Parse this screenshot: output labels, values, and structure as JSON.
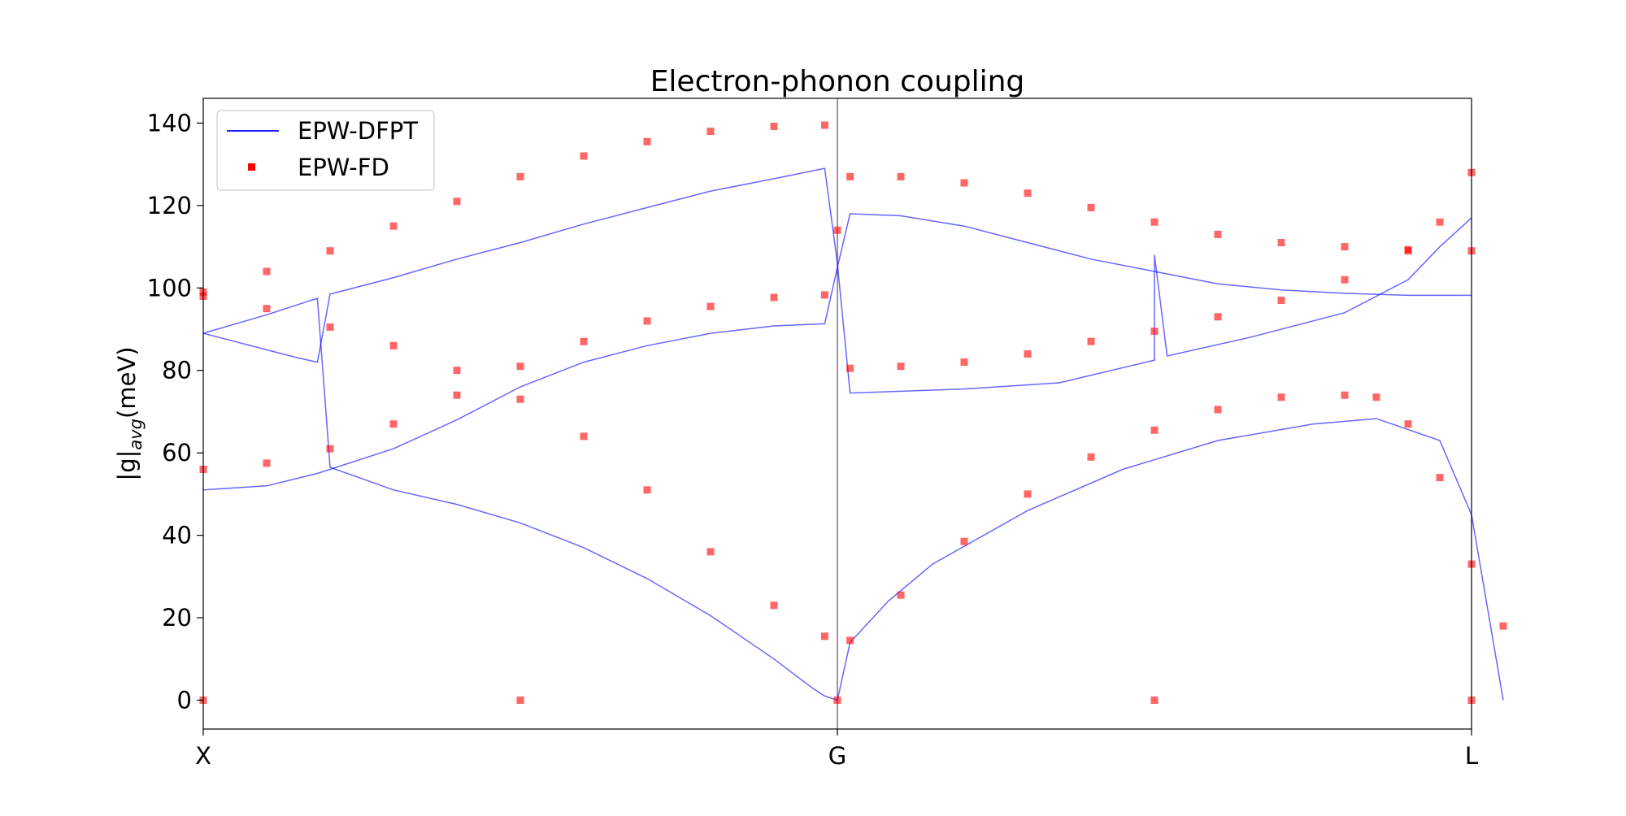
{
  "chart_data": {
    "type": "line",
    "title": "Electron-phonon coupling",
    "ylabel_main": "|g|",
    "ylabel_sub": "avg",
    "ylabel_unit": "(meV)",
    "xlabel": "",
    "x_ticks": [
      {
        "label": "X",
        "pos": 0
      },
      {
        "label": "G",
        "pos": 1
      },
      {
        "label": "L",
        "pos": 2
      }
    ],
    "x_range": [
      0,
      2
    ],
    "ylim": [
      -7,
      146
    ],
    "y_ticks": [
      0,
      20,
      40,
      60,
      80,
      100,
      120,
      140
    ],
    "grid": false,
    "legend_position": "top-left",
    "legend": [
      {
        "label": "EPW-DFPT",
        "marker": "line",
        "color": "#0000ff"
      },
      {
        "label": "EPW-FD",
        "marker": "square",
        "color": "#ff0000"
      }
    ],
    "colors": {
      "dfpt": "#0000ff",
      "fd": "#ff0000"
    },
    "series": [
      {
        "legend": "EPW-DFPT",
        "kind": "line",
        "points": [
          [
            0,
            51
          ],
          [
            0.1,
            52
          ],
          [
            0.18,
            55
          ],
          [
            0.3,
            61
          ],
          [
            0.4,
            68
          ],
          [
            0.5,
            76
          ],
          [
            0.6,
            82
          ],
          [
            0.7,
            86
          ],
          [
            0.8,
            89
          ],
          [
            0.9,
            90.8
          ],
          [
            0.98,
            91.3
          ],
          [
            1.0,
            105
          ],
          [
            1.02,
            118
          ],
          [
            1.1,
            117.5
          ],
          [
            1.2,
            115
          ],
          [
            1.3,
            111
          ],
          [
            1.4,
            107
          ],
          [
            1.5,
            104
          ],
          [
            1.6,
            101
          ],
          [
            1.7,
            99.5
          ],
          [
            1.8,
            98.7
          ],
          [
            1.9,
            98.2
          ],
          [
            2.0,
            98.2
          ]
        ]
      },
      {
        "legend": "EPW-DFPT",
        "kind": "line",
        "points": [
          [
            0,
            89
          ],
          [
            0.1,
            93.5
          ],
          [
            0.18,
            97.5
          ],
          [
            0.2,
            56.5
          ],
          [
            0.3,
            51
          ],
          [
            0.4,
            47.5
          ],
          [
            0.5,
            43
          ],
          [
            0.6,
            37
          ],
          [
            0.7,
            29.5
          ],
          [
            0.8,
            20.5
          ],
          [
            0.9,
            10
          ],
          [
            0.96,
            3
          ],
          [
            0.98,
            1
          ],
          [
            1.0,
            0
          ],
          [
            1.02,
            14
          ],
          [
            1.08,
            24
          ],
          [
            1.15,
            33
          ],
          [
            1.3,
            46
          ],
          [
            1.45,
            56
          ],
          [
            1.6,
            63
          ],
          [
            1.75,
            67
          ],
          [
            1.85,
            68.3
          ],
          [
            1.95,
            63
          ],
          [
            2.0,
            45
          ],
          [
            2.05,
            0
          ]
        ]
      },
      {
        "legend": "EPW-DFPT",
        "kind": "line",
        "points": [
          [
            0,
            89
          ],
          [
            0.1,
            85
          ],
          [
            0.15,
            83
          ],
          [
            0.18,
            82
          ],
          [
            0.2,
            98.5
          ],
          [
            0.3,
            102.5
          ],
          [
            0.4,
            107
          ],
          [
            0.5,
            111
          ],
          [
            0.6,
            115.5
          ],
          [
            0.7,
            119.5
          ],
          [
            0.8,
            123.5
          ],
          [
            0.9,
            126.5
          ],
          [
            0.98,
            129
          ],
          [
            1.0,
            106
          ],
          [
            1.02,
            74.5
          ],
          [
            1.2,
            75.5
          ],
          [
            1.35,
            77
          ],
          [
            1.5,
            82.5
          ],
          [
            1.5,
            108
          ],
          [
            1.52,
            83.5
          ],
          [
            1.65,
            88
          ],
          [
            1.8,
            94
          ],
          [
            1.9,
            102
          ],
          [
            1.95,
            110
          ],
          [
            2.0,
            117
          ]
        ]
      },
      {
        "legend": "EPW-FD",
        "kind": "scatter",
        "points": [
          [
            0,
            56
          ],
          [
            0.1,
            57.5
          ],
          [
            0.2,
            61
          ],
          [
            0.3,
            67
          ],
          [
            0.4,
            74
          ],
          [
            0.5,
            81
          ],
          [
            0.6,
            87
          ],
          [
            0.7,
            92
          ],
          [
            0.8,
            95.5
          ],
          [
            0.9,
            97.7
          ],
          [
            0.98,
            98.3
          ],
          [
            1.0,
            114
          ],
          [
            1.02,
            127
          ],
          [
            1.1,
            127
          ],
          [
            1.2,
            125.5
          ],
          [
            1.3,
            123
          ],
          [
            1.4,
            119.5
          ],
          [
            1.5,
            116
          ],
          [
            1.6,
            113
          ],
          [
            1.7,
            111
          ],
          [
            1.8,
            110
          ],
          [
            1.9,
            109.3
          ],
          [
            2.0,
            109
          ]
        ]
      },
      {
        "legend": "EPW-FD",
        "kind": "scatter",
        "points": [
          [
            0,
            98
          ],
          [
            0.1,
            95
          ],
          [
            0.2,
            90.5
          ],
          [
            0.3,
            86
          ],
          [
            0.4,
            80
          ],
          [
            0.5,
            73
          ],
          [
            0.6,
            64
          ],
          [
            0.7,
            51
          ],
          [
            0.8,
            36
          ],
          [
            0.9,
            23
          ],
          [
            0.98,
            15.5
          ],
          [
            1.02,
            14.5
          ],
          [
            1.1,
            25.5
          ],
          [
            1.2,
            38.5
          ],
          [
            1.3,
            50
          ],
          [
            1.4,
            59
          ],
          [
            1.5,
            65.5
          ],
          [
            1.6,
            70.5
          ],
          [
            1.7,
            73.5
          ],
          [
            1.8,
            74
          ],
          [
            1.85,
            73.5
          ],
          [
            1.9,
            67
          ],
          [
            1.95,
            54
          ],
          [
            2.0,
            33
          ],
          [
            2.05,
            18
          ]
        ]
      },
      {
        "legend": "EPW-FD",
        "kind": "scatter",
        "points": [
          [
            0,
            99
          ],
          [
            0.1,
            104
          ],
          [
            0.2,
            109
          ],
          [
            0.3,
            115
          ],
          [
            0.4,
            121
          ],
          [
            0.5,
            127
          ],
          [
            0.6,
            132
          ],
          [
            0.7,
            135.5
          ],
          [
            0.8,
            138
          ],
          [
            0.9,
            139.2
          ],
          [
            0.98,
            139.5
          ],
          [
            1.02,
            80.5
          ],
          [
            1.1,
            81
          ],
          [
            1.2,
            82
          ],
          [
            1.3,
            84
          ],
          [
            1.4,
            87
          ],
          [
            1.5,
            89.5
          ],
          [
            1.6,
            93
          ],
          [
            1.7,
            97
          ],
          [
            1.8,
            102
          ],
          [
            1.9,
            109
          ],
          [
            1.95,
            116
          ],
          [
            2.0,
            128
          ]
        ]
      },
      {
        "legend": "EPW-FD",
        "kind": "scatter",
        "points": [
          [
            0,
            0
          ],
          [
            0.5,
            0
          ],
          [
            1.0,
            0
          ],
          [
            1.5,
            0
          ],
          [
            2.0,
            0
          ]
        ]
      }
    ]
  }
}
